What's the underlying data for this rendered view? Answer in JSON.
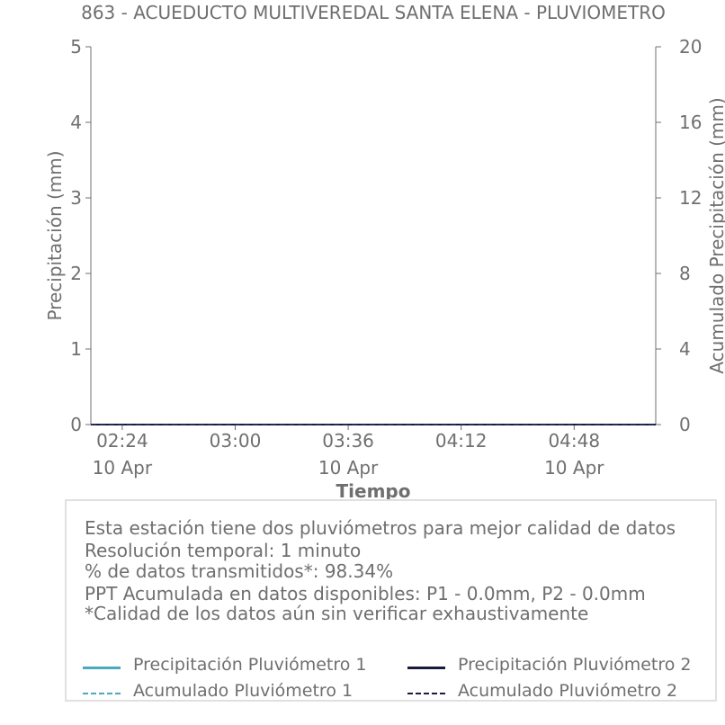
{
  "chart_data": {
    "type": "line",
    "title": "863 - ACUEDUCTO MULTIVEREDAL SANTA ELENA - PLUVIOMETRO",
    "xlabel": "Tiempo",
    "ylabel": "Precipitación (mm)",
    "y2label": "Acumulado Precipitación (mm)",
    "ylim": [
      0,
      5
    ],
    "y2lim": [
      0,
      20
    ],
    "yticks": [
      "0",
      "1",
      "2",
      "3",
      "4",
      "5"
    ],
    "y2ticks": [
      "0",
      "4",
      "8",
      "12",
      "16",
      "20"
    ],
    "xticks": [
      {
        "time": "02:24",
        "date": "10 Apr"
      },
      {
        "time": "03:00",
        "date": ""
      },
      {
        "time": "03:36",
        "date": "10 Apr"
      },
      {
        "time": "04:12",
        "date": ""
      },
      {
        "time": "04:48",
        "date": "10 Apr"
      }
    ],
    "x_range_minutes": [
      134,
      314
    ],
    "xtick_minutes": [
      144,
      180,
      216,
      252,
      288
    ],
    "series": [
      {
        "name": "Precipitación Pluviómetro 1",
        "axis": "left",
        "style": "solid",
        "color": "#4aa9bd",
        "x": [
          134,
          314
        ],
        "values": [
          0,
          0
        ]
      },
      {
        "name": "Precipitación Pluviómetro 2",
        "axis": "left",
        "style": "solid",
        "color": "#1a1a40",
        "x": [
          134,
          314
        ],
        "values": [
          0,
          0
        ]
      },
      {
        "name": "Acumulado Pluviómetro 1",
        "axis": "right",
        "style": "dashed",
        "color": "#4aa9bd",
        "x": [
          134,
          314
        ],
        "values": [
          0,
          0
        ]
      },
      {
        "name": "Acumulado Pluviómetro 2",
        "axis": "right",
        "style": "dashed",
        "color": "#1a1a40",
        "x": [
          134,
          314
        ],
        "values": [
          0,
          0
        ]
      }
    ],
    "grid": false,
    "legend_placement": "bottom"
  },
  "info": {
    "lines": [
      "Esta estación tiene dos pluviómetros para mejor calidad de datos",
      "Resolución temporal: 1 minuto",
      "% de datos transmitidos*: 98.34%",
      "PPT Acumulada en datos disponibles: P1 - 0.0mm, P2 - 0.0mm",
      "*Calidad de los datos aún sin verificar exhaustivamente"
    ]
  },
  "legend": [
    {
      "label": "Precipitación Pluviómetro 1",
      "color": "#4aa9bd",
      "style": "solid"
    },
    {
      "label": "Precipitación Pluviómetro 2",
      "color": "#1a1a40",
      "style": "solid"
    },
    {
      "label": "Acumulado Pluviómetro 1",
      "color": "#4aa9bd",
      "style": "dashed"
    },
    {
      "label": "Acumulado Pluviómetro 2",
      "color": "#1a1a40",
      "style": "dashed"
    }
  ]
}
